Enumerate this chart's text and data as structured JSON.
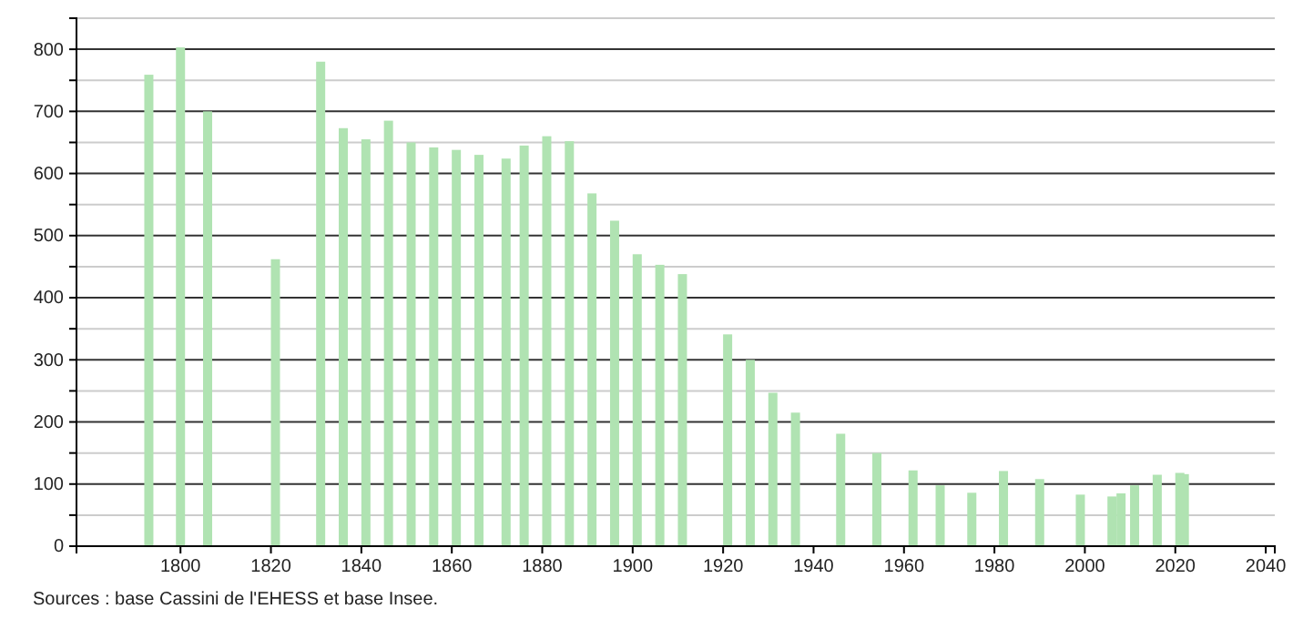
{
  "chart_data": {
    "type": "bar",
    "x": [
      1793,
      1800,
      1806,
      1821,
      1831,
      1836,
      1841,
      1846,
      1851,
      1856,
      1861,
      1866,
      1872,
      1876,
      1881,
      1886,
      1891,
      1896,
      1901,
      1906,
      1911,
      1921,
      1926,
      1931,
      1936,
      1946,
      1954,
      1962,
      1968,
      1975,
      1982,
      1990,
      1999,
      2006,
      2008,
      2011,
      2016,
      2021,
      2022
    ],
    "values": [
      759,
      803,
      700,
      462,
      780,
      673,
      655,
      685,
      650,
      642,
      638,
      630,
      624,
      645,
      660,
      652,
      568,
      524,
      470,
      453,
      438,
      341,
      300,
      247,
      215,
      181,
      150,
      122,
      98,
      86,
      121,
      108,
      83,
      80,
      85,
      98,
      115,
      118,
      116
    ],
    "color": "#b0e3b2",
    "xlim": [
      1777,
      2042
    ],
    "xticks": [
      1800,
      1820,
      1840,
      1860,
      1880,
      1900,
      1920,
      1940,
      1960,
      1980,
      2000,
      2020,
      2040
    ],
    "ylim": [
      0,
      850
    ],
    "yticks": [
      0,
      {
        "value": 50,
        "label": null
      },
      100,
      {
        "value": 150,
        "label": null
      },
      200,
      {
        "value": 250,
        "label": null
      },
      300,
      {
        "value": 350,
        "label": null
      },
      400,
      {
        "value": 450,
        "label": null
      },
      500,
      {
        "value": 550,
        "label": null
      },
      600,
      {
        "value": 650,
        "label": null
      },
      700,
      {
        "value": 750,
        "label": null
      },
      800,
      {
        "value": 850,
        "label": null
      }
    ],
    "grid": "y",
    "annotations": [
      "Sources : base Cassini de l'EHESS et base Insee."
    ]
  }
}
